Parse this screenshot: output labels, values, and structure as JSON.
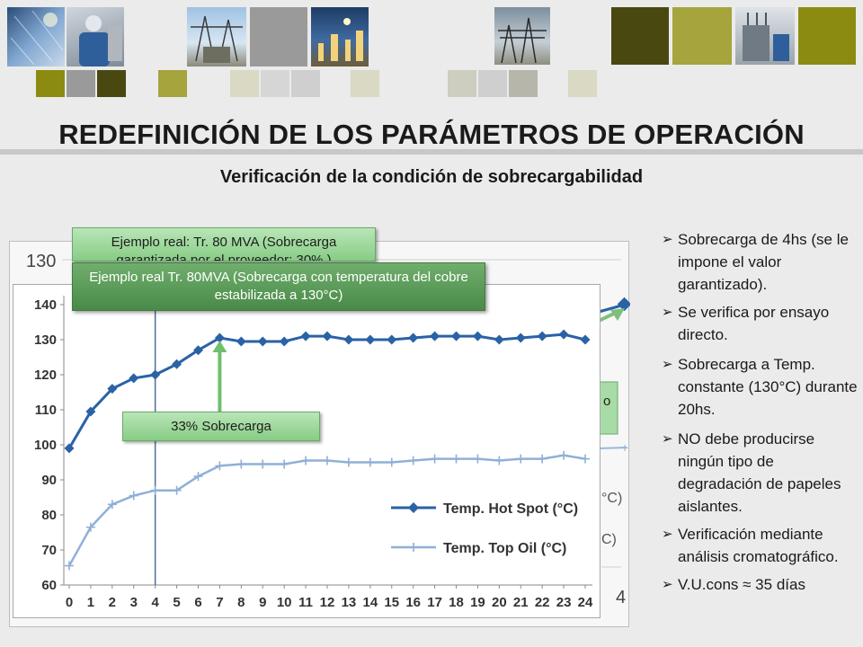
{
  "header": {
    "title": "REDEFINICIÓN DE LOS PARÁMETROS DE OPERACIÓN",
    "subtitle": "Verificación de la condición de sobrecargabilidad",
    "tile_colors": [
      "#8b8b12",
      "#9a9a9a",
      "#484810",
      "#a5a43d",
      "#d9d9c4",
      "#cfcfcf",
      "#cdcdc0",
      "#b9b875"
    ]
  },
  "back_chart": {
    "y_top_label": "130",
    "x_right_label": "4",
    "partial_legend_1": "°C)",
    "partial_legend_2": "C)",
    "partial_box_text": "o"
  },
  "callouts": {
    "back_box": "Ejemplo real: Tr. 80 MVA  (Sobrecarga garantizada por el proveedor: 30% )",
    "front_box": "Ejemplo real Tr. 80MVA (Sobrecarga con temperatura del cobre estabilizada a 130°C)",
    "overload_box": "33% Sobrecarga"
  },
  "chart_data": {
    "type": "line",
    "x": [
      0,
      1,
      2,
      3,
      4,
      5,
      6,
      7,
      8,
      9,
      10,
      11,
      12,
      13,
      14,
      15,
      16,
      17,
      18,
      19,
      20,
      21,
      22,
      23,
      24
    ],
    "ylim": [
      60,
      140
    ],
    "yticks": [
      60,
      70,
      80,
      90,
      100,
      110,
      120,
      130,
      140
    ],
    "series": [
      {
        "name": "Temp. Hot Spot (°C)",
        "color": "#2a62a6",
        "values": [
          99,
          109.5,
          116,
          119,
          120,
          123,
          127,
          130.5,
          129.5,
          129.5,
          129.5,
          131,
          131,
          130,
          130,
          130,
          130.5,
          131,
          131,
          131,
          130,
          130.5,
          131,
          131.5,
          130
        ]
      },
      {
        "name": "Temp. Top Oil (°C)",
        "color": "#8fb0d6",
        "values": [
          65.5,
          76.5,
          83,
          85.5,
          87,
          87,
          91,
          94,
          94.5,
          94.5,
          94.5,
          95.5,
          95.5,
          95,
          95,
          95,
          95.5,
          96,
          96,
          96,
          95.5,
          96,
          96,
          97,
          96
        ]
      }
    ],
    "vline_x": 4
  },
  "bullets": [
    "Sobrecarga de 4hs (se le impone el valor garantizado).",
    "Se verifica por ensayo directo.",
    "Sobrecarga a Temp. constante (130°C) durante 20hs.",
    "NO debe producirse ningún tipo de degradación de papeles aislantes.",
    "Verificación mediante análisis cromatográfico.",
    "V.U.cons ≈ 35 días"
  ],
  "bullet_symbol": "➢"
}
